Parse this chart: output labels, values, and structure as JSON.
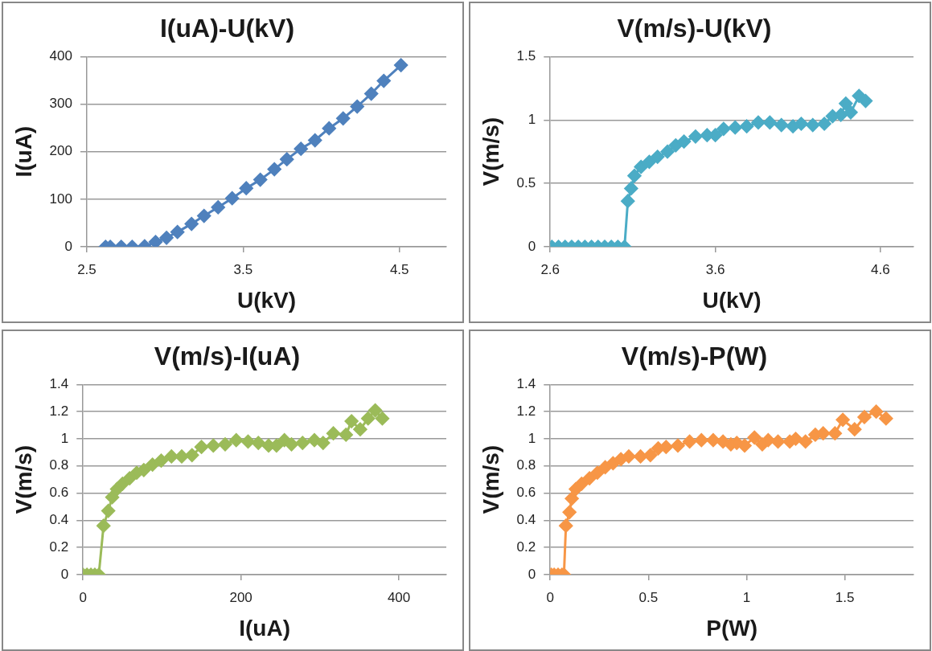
{
  "chart_data": [
    {
      "type": "line",
      "title": "I(uA)-U(kV)",
      "xlabel": "U(kV)",
      "ylabel": "I(uA)",
      "xlim": [
        2.5,
        4.8
      ],
      "xticks": [
        2.5,
        3.5,
        4.5
      ],
      "ylim": [
        0,
        400
      ],
      "yticks": [
        0,
        100,
        200,
        300,
        400
      ],
      "grid": "y",
      "legend": false,
      "marker": "diamond",
      "line_style": "solid",
      "series": [
        {
          "color": "#4f81bd",
          "x": [
            2.62,
            2.65,
            2.72,
            2.79,
            2.87,
            2.94,
            3.01,
            3.08,
            3.17,
            3.25,
            3.34,
            3.43,
            3.52,
            3.61,
            3.7,
            3.78,
            3.87,
            3.96,
            4.05,
            4.14,
            4.23,
            4.32,
            4.4,
            4.51
          ],
          "values": [
            0,
            0,
            0,
            0,
            1,
            10,
            19,
            31,
            48,
            65,
            83,
            102,
            123,
            141,
            163,
            184,
            206,
            224,
            249,
            270,
            295,
            322,
            349,
            382
          ]
        }
      ]
    },
    {
      "type": "line",
      "title": "V(m/s)-U(kV)",
      "xlabel": "U(kV)",
      "ylabel": "V(m/s)",
      "xlim": [
        2.6,
        4.8
      ],
      "xticks": [
        2.6,
        3.6,
        4.6
      ],
      "ylim": [
        0,
        1.5
      ],
      "yticks": [
        0,
        0.5,
        1,
        1.5
      ],
      "grid": "y",
      "legend": false,
      "marker": "diamond",
      "line_style": "solid",
      "series": [
        {
          "color": "#4bacc6",
          "x": [
            2.61,
            2.65,
            2.69,
            2.73,
            2.77,
            2.81,
            2.85,
            2.89,
            2.93,
            2.97,
            3.01,
            3.05,
            3.07,
            3.09,
            3.11,
            3.15,
            3.2,
            3.25,
            3.31,
            3.36,
            3.41,
            3.48,
            3.55,
            3.6,
            3.65,
            3.72,
            3.79,
            3.86,
            3.93,
            4.0,
            4.07,
            4.12,
            4.19,
            4.26,
            4.31,
            4.36,
            4.39,
            4.42,
            4.47,
            4.51
          ],
          "values": [
            0,
            0,
            0,
            0,
            0,
            0,
            0,
            0,
            0,
            0,
            0,
            0,
            0.36,
            0.46,
            0.56,
            0.63,
            0.67,
            0.71,
            0.75,
            0.8,
            0.83,
            0.87,
            0.88,
            0.88,
            0.93,
            0.94,
            0.95,
            0.98,
            0.98,
            0.96,
            0.95,
            0.97,
            0.96,
            0.97,
            1.03,
            1.04,
            1.13,
            1.06,
            1.19,
            1.15
          ]
        }
      ]
    },
    {
      "type": "line",
      "title": "V(m/s)-I(uA)",
      "xlabel": "I(uA)",
      "ylabel": "V(m/s)",
      "xlim": [
        0,
        460
      ],
      "xticks": [
        0,
        200,
        400
      ],
      "ylim": [
        0,
        1.4
      ],
      "yticks": [
        0,
        0.2,
        0.4,
        0.6,
        0.8,
        1,
        1.2,
        1.4
      ],
      "grid": "y",
      "legend": false,
      "marker": "diamond",
      "line_style": "solid",
      "series": [
        {
          "color": "#9bbb59",
          "x": [
            0,
            5,
            10,
            15,
            20,
            26,
            32,
            37,
            43,
            50,
            59,
            68,
            77,
            88,
            99,
            112,
            125,
            138,
            150,
            165,
            180,
            194,
            209,
            222,
            235,
            245,
            255,
            264,
            278,
            293,
            304,
            317,
            333,
            340,
            351,
            361,
            370,
            379
          ],
          "values": [
            0,
            0,
            0,
            0,
            0,
            0.36,
            0.47,
            0.57,
            0.63,
            0.67,
            0.71,
            0.75,
            0.77,
            0.81,
            0.84,
            0.87,
            0.87,
            0.88,
            0.94,
            0.95,
            0.96,
            0.99,
            0.98,
            0.97,
            0.95,
            0.95,
            0.99,
            0.96,
            0.97,
            0.99,
            0.97,
            1.04,
            1.03,
            1.13,
            1.07,
            1.15,
            1.21,
            1.15
          ]
        }
      ]
    },
    {
      "type": "line",
      "title": "V(m/s)-P(W)",
      "xlabel": "P(W)",
      "ylabel": "V(m/s)",
      "xlim": [
        0,
        1.85
      ],
      "xticks": [
        0,
        0.5,
        1,
        1.5
      ],
      "ylim": [
        0,
        1.4
      ],
      "yticks": [
        0,
        0.2,
        0.4,
        0.6,
        0.8,
        1,
        1.2,
        1.4
      ],
      "grid": "y",
      "legend": false,
      "marker": "diamond",
      "line_style": "solid",
      "series": [
        {
          "color": "#f79646",
          "x": [
            0.005,
            0.02,
            0.04,
            0.06,
            0.07,
            0.08,
            0.098,
            0.11,
            0.13,
            0.16,
            0.2,
            0.24,
            0.28,
            0.32,
            0.36,
            0.4,
            0.46,
            0.51,
            0.55,
            0.59,
            0.65,
            0.71,
            0.77,
            0.83,
            0.88,
            0.92,
            0.95,
            0.99,
            1.04,
            1.08,
            1.11,
            1.16,
            1.22,
            1.25,
            1.3,
            1.35,
            1.39,
            1.45,
            1.49,
            1.55,
            1.6,
            1.66,
            1.71
          ],
          "values": [
            0,
            0,
            0,
            0,
            0,
            0.36,
            0.46,
            0.56,
            0.63,
            0.67,
            0.71,
            0.75,
            0.79,
            0.82,
            0.85,
            0.87,
            0.87,
            0.88,
            0.93,
            0.94,
            0.95,
            0.98,
            0.99,
            0.99,
            0.98,
            0.96,
            0.97,
            0.95,
            1.01,
            0.96,
            0.99,
            0.98,
            0.98,
            1.0,
            0.98,
            1.03,
            1.04,
            1.04,
            1.14,
            1.07,
            1.16,
            1.2,
            1.15
          ]
        }
      ]
    }
  ]
}
